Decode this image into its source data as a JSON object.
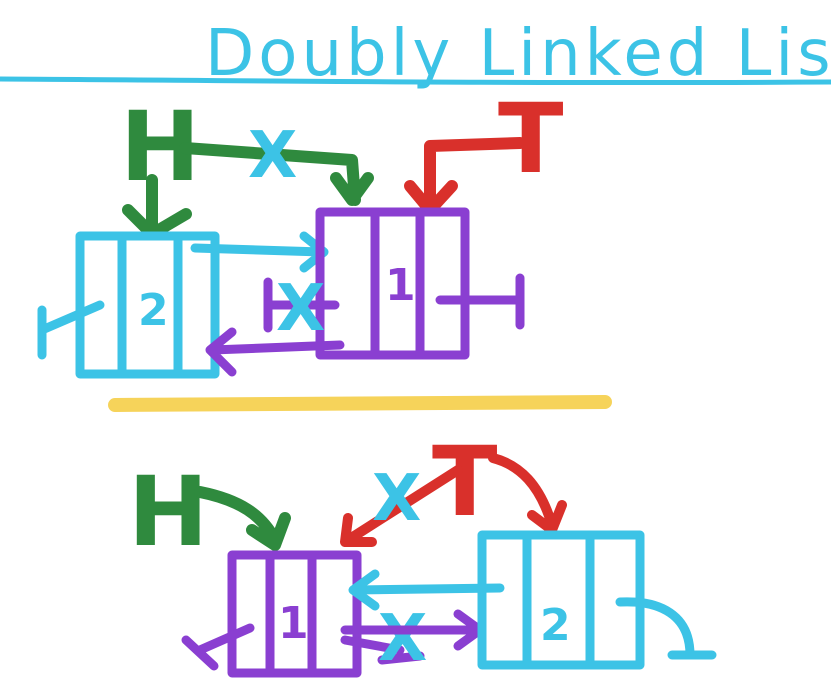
{
  "title": "Doubly Linked List",
  "colors": {
    "cyan": "#3cc3e6",
    "green": "#2f8a3e",
    "red": "#d9302b",
    "purple": "#8a3fd1",
    "yellow": "#f6d35a"
  },
  "top": {
    "head_label": "H",
    "tail_label": "T",
    "nodes": [
      {
        "value": "2",
        "color": "cyan"
      },
      {
        "value": "1",
        "color": "purple"
      }
    ],
    "crossed_mark": "X"
  },
  "bottom": {
    "head_label": "H",
    "tail_label": "T",
    "nodes": [
      {
        "value": "1",
        "color": "purple"
      },
      {
        "value": "2",
        "color": "cyan"
      }
    ],
    "crossed_mark": "X"
  }
}
